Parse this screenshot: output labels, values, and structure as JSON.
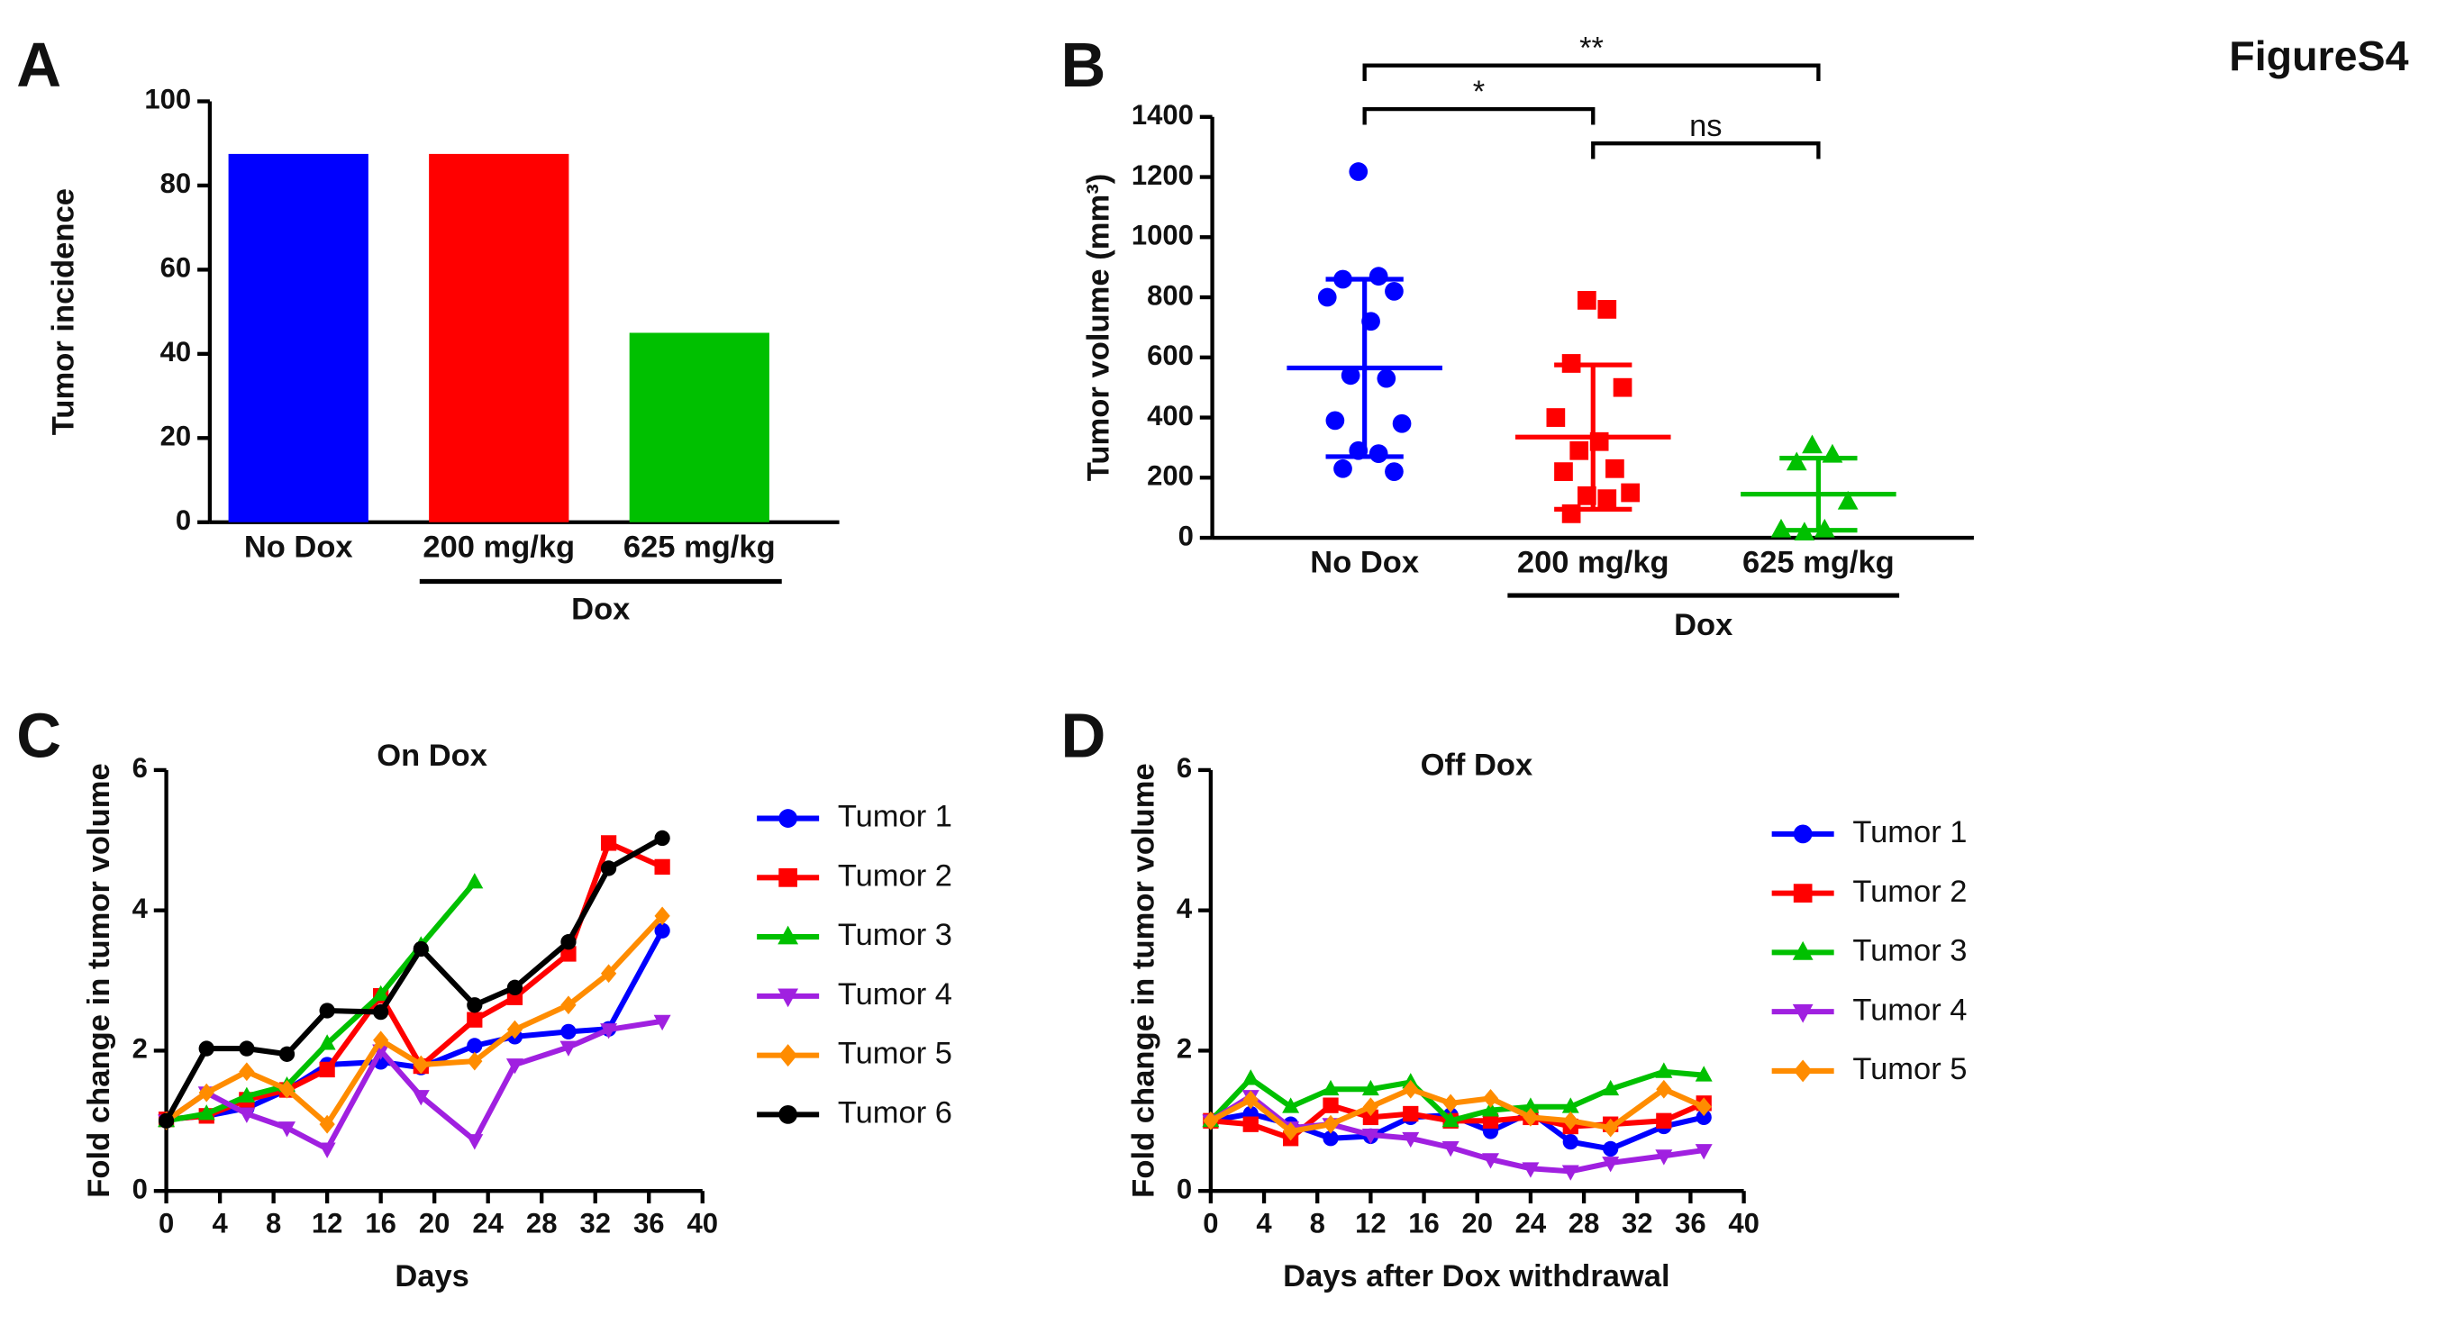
{
  "figure_label": "FigureS4",
  "chart_data": [
    {
      "type": "bar",
      "panel": "A",
      "y_label": "Tumor incidence",
      "categories": [
        "No Dox",
        "200 mg/kg",
        "625 mg/kg"
      ],
      "values": [
        87.5,
        87.5,
        45
      ],
      "colors": [
        "#0000ff",
        "#ff0000",
        "#00c000"
      ],
      "group": {
        "label": "Dox",
        "categories": [
          1,
          2
        ]
      },
      "ylim": [
        0,
        100
      ],
      "yticks": [
        0,
        20,
        40,
        60,
        80,
        100
      ]
    },
    {
      "type": "dot-plot",
      "panel": "B",
      "y_label": "Tumor  volume (mm³)",
      "categories": [
        "No Dox",
        "200 mg/kg",
        "625 mg/kg"
      ],
      "colors": [
        "#0000ff",
        "#ff0000",
        "#00c000"
      ],
      "markers": [
        "circle",
        "square",
        "triangle"
      ],
      "points": [
        [
          1218,
          870,
          860,
          820,
          800,
          720,
          540,
          530,
          390,
          380,
          290,
          280,
          230,
          220
        ],
        [
          790,
          760,
          580,
          500,
          400,
          320,
          290,
          230,
          220,
          150,
          140,
          130,
          80
        ],
        [
          306,
          275,
          249,
          119,
          26,
          26,
          16
        ]
      ],
      "mean": [
        565,
        335,
        145
      ],
      "sd": [
        295,
        240,
        120
      ],
      "group": {
        "label": "Dox",
        "categories": [
          1,
          2
        ]
      },
      "brackets": [
        {
          "from": 0,
          "to": 2,
          "label": "**"
        },
        {
          "from": 0,
          "to": 1,
          "label": "*"
        },
        {
          "from": 1,
          "to": 2,
          "label": "ns"
        }
      ],
      "ylim": [
        0,
        1400
      ],
      "yticks": [
        0,
        200,
        400,
        600,
        800,
        1000,
        1200,
        1400
      ]
    },
    {
      "type": "line",
      "panel": "C",
      "title": "On Dox",
      "x_label": "Days",
      "y_label": "Fold change in tumor volume",
      "x": [
        0,
        3,
        6,
        9,
        12,
        16,
        19,
        23,
        26,
        30,
        33,
        37
      ],
      "series": [
        {
          "name": "Tumor 1",
          "color": "#0000ff",
          "marker": "circle",
          "values": [
            1.02,
            1.07,
            1.18,
            1.44,
            1.8,
            1.84,
            1.76,
            2.07,
            2.2,
            2.27,
            2.31,
            3.71
          ]
        },
        {
          "name": "Tumor 2",
          "color": "#ff0000",
          "marker": "square",
          "values": [
            1.02,
            1.07,
            1.3,
            1.44,
            1.73,
            2.78,
            1.78,
            2.44,
            2.76,
            3.38,
            4.96,
            4.62
          ]
        },
        {
          "name": "Tumor 3",
          "color": "#00c000",
          "marker": "triangle",
          "values": [
            1.0,
            1.1,
            1.35,
            1.5,
            2.1,
            2.8,
            3.5,
            4.4,
            null,
            null,
            null,
            null
          ]
        },
        {
          "name": "Tumor 4",
          "color": "#a020e0",
          "marker": "triangle-down",
          "values": [
            1.0,
            1.4,
            1.1,
            0.9,
            0.6,
            2.0,
            1.35,
            0.72,
            1.8,
            2.05,
            2.3,
            2.42
          ]
        },
        {
          "name": "Tumor 5",
          "color": "#ff8c00",
          "marker": "diamond",
          "values": [
            1.0,
            1.4,
            1.7,
            1.45,
            0.95,
            2.15,
            1.8,
            1.85,
            2.3,
            2.65,
            3.1,
            3.92
          ]
        },
        {
          "name": "Tumor 6",
          "color": "#000000",
          "marker": "circle",
          "values": [
            1.0,
            2.03,
            2.03,
            1.95,
            2.57,
            2.55,
            3.45,
            2.65,
            2.9,
            3.55,
            4.6,
            5.03
          ]
        }
      ],
      "xlim": [
        0,
        40
      ],
      "xticks": [
        0,
        4,
        8,
        12,
        16,
        20,
        24,
        28,
        32,
        36,
        40
      ],
      "ylim": [
        0,
        6
      ],
      "yticks": [
        0,
        2,
        4,
        6
      ]
    },
    {
      "type": "line",
      "panel": "D",
      "title": "Off Dox",
      "x_label": "Days after Dox withdrawal",
      "y_label": "Fold change in tumor volume",
      "x": [
        0,
        3,
        6,
        9,
        12,
        15,
        18,
        21,
        24,
        27,
        30,
        34,
        37
      ],
      "series": [
        {
          "name": "Tumor 1",
          "color": "#0000ff",
          "marker": "circle",
          "values": [
            1.0,
            1.1,
            0.95,
            0.75,
            0.78,
            1.05,
            1.08,
            0.85,
            1.12,
            0.7,
            0.6,
            0.92,
            1.05
          ]
        },
        {
          "name": "Tumor 2",
          "color": "#ff0000",
          "marker": "square",
          "values": [
            1.0,
            0.95,
            0.75,
            1.22,
            1.05,
            1.1,
            1.0,
            1.0,
            1.05,
            0.92,
            0.95,
            1.0,
            1.25
          ]
        },
        {
          "name": "Tumor 3",
          "color": "#00c000",
          "marker": "triangle",
          "values": [
            1.0,
            1.6,
            1.2,
            1.45,
            1.45,
            1.55,
            1.0,
            1.15,
            1.2,
            1.2,
            1.45,
            1.7,
            1.65
          ]
        },
        {
          "name": "Tumor 4",
          "color": "#a020e0",
          "marker": "triangle-down",
          "values": [
            1.0,
            1.35,
            0.9,
            0.95,
            0.8,
            0.75,
            0.62,
            0.45,
            0.32,
            0.28,
            0.4,
            0.5,
            0.58
          ]
        },
        {
          "name": "Tumor 5",
          "color": "#ff8c00",
          "marker": "diamond",
          "values": [
            1.0,
            1.3,
            0.85,
            0.95,
            1.2,
            1.45,
            1.25,
            1.32,
            1.05,
            1.0,
            0.9,
            1.45,
            1.2
          ]
        }
      ],
      "xlim": [
        0,
        40
      ],
      "xticks": [
        0,
        4,
        8,
        12,
        16,
        20,
        24,
        28,
        32,
        36,
        40
      ],
      "ylim": [
        0,
        6
      ],
      "yticks": [
        0,
        2,
        4,
        6
      ]
    }
  ]
}
